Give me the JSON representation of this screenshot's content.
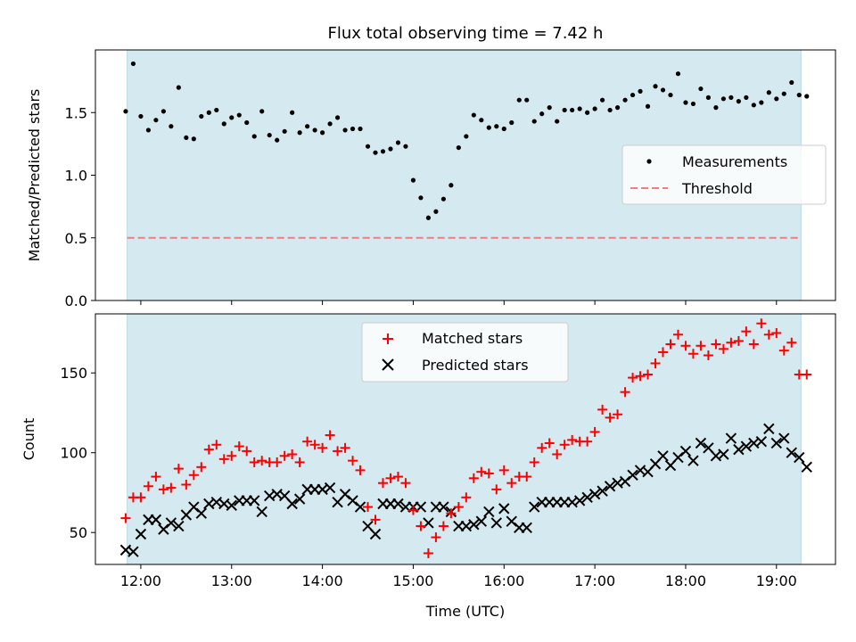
{
  "title": "Flux total observing time = 7.42 h",
  "xlabel": "Time (UTC)",
  "colors": {
    "span": "#d4eaf0",
    "threshold": "#f47c7c",
    "measurement": "#000000",
    "matched": "#ff0000",
    "predicted": "#000000"
  },
  "chart_data": [
    {
      "type": "scatter",
      "ylabel": "Matched/Predicted stars",
      "ylim": [
        0,
        2.0
      ],
      "yticks": [
        "0.0",
        "0.5",
        "1.0",
        "1.5"
      ],
      "xlim_hours": [
        11.5,
        19.65
      ],
      "span_hours": [
        11.85,
        19.27
      ],
      "legend": {
        "placement": "center-right",
        "entries": [
          "Measurements",
          "Threshold"
        ]
      },
      "threshold": 0.5,
      "series": [
        {
          "name": "Measurements",
          "marker": "dot",
          "x": [
            "11:50",
            "11:55",
            "12:00",
            "12:05",
            "12:10",
            "12:15",
            "12:20",
            "12:25",
            "12:30",
            "12:35",
            "12:40",
            "12:45",
            "12:50",
            "12:55",
            "13:00",
            "13:05",
            "13:10",
            "13:15",
            "13:20",
            "13:25",
            "13:30",
            "13:35",
            "13:40",
            "13:45",
            "13:50",
            "13:55",
            "14:00",
            "14:05",
            "14:10",
            "14:15",
            "14:20",
            "14:25",
            "14:30",
            "14:35",
            "14:40",
            "14:45",
            "14:50",
            "14:55",
            "15:00",
            "15:05",
            "15:10",
            "15:15",
            "15:20",
            "15:25",
            "15:30",
            "15:35",
            "15:40",
            "15:45",
            "15:50",
            "15:55",
            "16:00",
            "16:05",
            "16:10",
            "16:15",
            "16:20",
            "16:25",
            "16:30",
            "16:35",
            "16:40",
            "16:45",
            "16:50",
            "16:55",
            "17:00",
            "17:05",
            "17:10",
            "17:15",
            "17:20",
            "17:25",
            "17:30",
            "17:35",
            "17:40",
            "17:45",
            "17:50",
            "17:55",
            "18:00",
            "18:05",
            "18:10",
            "18:15",
            "18:20",
            "18:25",
            "18:30",
            "18:35",
            "18:40",
            "18:45",
            "18:50",
            "18:55",
            "19:00",
            "19:05",
            "19:10",
            "19:15",
            "19:20"
          ],
          "y": [
            1.51,
            1.89,
            1.47,
            1.36,
            1.44,
            1.51,
            1.39,
            1.7,
            1.3,
            1.29,
            1.47,
            1.5,
            1.52,
            1.41,
            1.46,
            1.48,
            1.42,
            1.31,
            1.51,
            1.32,
            1.28,
            1.35,
            1.5,
            1.34,
            1.39,
            1.36,
            1.34,
            1.41,
            1.46,
            1.36,
            1.37,
            1.37,
            1.23,
            1.18,
            1.19,
            1.21,
            1.26,
            1.23,
            0.96,
            0.82,
            0.66,
            0.71,
            0.81,
            0.92,
            1.22,
            1.31,
            1.48,
            1.44,
            1.38,
            1.39,
            1.37,
            1.42,
            1.6,
            1.6,
            1.43,
            1.49,
            1.54,
            1.43,
            1.52,
            1.52,
            1.53,
            1.5,
            1.53,
            1.6,
            1.52,
            1.54,
            1.6,
            1.64,
            1.67,
            1.55,
            1.71,
            1.68,
            1.64,
            1.81,
            1.58,
            1.57,
            1.69,
            1.62,
            1.54,
            1.61,
            1.62,
            1.59,
            1.62,
            1.56,
            1.58,
            1.66,
            1.61,
            1.65,
            1.74,
            1.64,
            1.63
          ]
        }
      ]
    },
    {
      "type": "scatter",
      "ylabel": "Count",
      "ylim": [
        30,
        187
      ],
      "yticks": [
        "50",
        "100",
        "150"
      ],
      "xticks": [
        "12:00",
        "13:00",
        "14:00",
        "15:00",
        "16:00",
        "17:00",
        "18:00",
        "19:00"
      ],
      "xlim_hours": [
        11.5,
        19.65
      ],
      "span_hours": [
        11.85,
        19.27
      ],
      "legend": {
        "placement": "upper-center",
        "entries": [
          "Matched stars",
          "Predicted stars"
        ]
      },
      "series": [
        {
          "name": "Matched stars",
          "marker": "plus",
          "x": [
            "11:50",
            "11:55",
            "12:00",
            "12:05",
            "12:10",
            "12:15",
            "12:20",
            "12:25",
            "12:30",
            "12:35",
            "12:40",
            "12:45",
            "12:50",
            "12:55",
            "13:00",
            "13:05",
            "13:10",
            "13:15",
            "13:20",
            "13:25",
            "13:30",
            "13:35",
            "13:40",
            "13:45",
            "13:50",
            "13:55",
            "14:00",
            "14:05",
            "14:10",
            "14:15",
            "14:20",
            "14:25",
            "14:30",
            "14:35",
            "14:40",
            "14:45",
            "14:50",
            "14:55",
            "15:00",
            "15:05",
            "15:10",
            "15:15",
            "15:20",
            "15:25",
            "15:30",
            "15:35",
            "15:40",
            "15:45",
            "15:50",
            "15:55",
            "16:00",
            "16:05",
            "16:10",
            "16:15",
            "16:20",
            "16:25",
            "16:30",
            "16:35",
            "16:40",
            "16:45",
            "16:50",
            "16:55",
            "17:00",
            "17:05",
            "17:10",
            "17:15",
            "17:20",
            "17:25",
            "17:30",
            "17:35",
            "17:40",
            "17:45",
            "17:50",
            "17:55",
            "18:00",
            "18:05",
            "18:10",
            "18:15",
            "18:20",
            "18:25",
            "18:30",
            "18:35",
            "18:40",
            "18:45",
            "18:50",
            "18:55",
            "19:00",
            "19:05",
            "19:10",
            "19:15",
            "19:20"
          ],
          "y": [
            59,
            72,
            72,
            79,
            85,
            77,
            78,
            90,
            80,
            86,
            91,
            102,
            105,
            96,
            98,
            104,
            101,
            94,
            95,
            94,
            94,
            98,
            99,
            94,
            107,
            105,
            103,
            111,
            101,
            103,
            95,
            89,
            66,
            58,
            81,
            84,
            85,
            81,
            64,
            54,
            37,
            47,
            54,
            62,
            66,
            72,
            84,
            88,
            87,
            77,
            89,
            81,
            85,
            85,
            94,
            103,
            106,
            99,
            105,
            108,
            107,
            107,
            113,
            127,
            122,
            124,
            138,
            147,
            148,
            149,
            156,
            163,
            168,
            174,
            167,
            162,
            167,
            161,
            168,
            165,
            169,
            170,
            176,
            168,
            181,
            174,
            175,
            164,
            169,
            149,
            149
          ]
        },
        {
          "name": "Predicted stars",
          "marker": "x",
          "x": [
            "11:50",
            "11:55",
            "12:00",
            "12:05",
            "12:10",
            "12:15",
            "12:20",
            "12:25",
            "12:30",
            "12:35",
            "12:40",
            "12:45",
            "12:50",
            "12:55",
            "13:00",
            "13:05",
            "13:10",
            "13:15",
            "13:20",
            "13:25",
            "13:30",
            "13:35",
            "13:40",
            "13:45",
            "13:50",
            "13:55",
            "14:00",
            "14:05",
            "14:10",
            "14:15",
            "14:20",
            "14:25",
            "14:30",
            "14:35",
            "14:40",
            "14:45",
            "14:50",
            "14:55",
            "15:00",
            "15:05",
            "15:10",
            "15:15",
            "15:20",
            "15:25",
            "15:30",
            "15:35",
            "15:40",
            "15:45",
            "15:50",
            "15:55",
            "16:00",
            "16:05",
            "16:10",
            "16:15",
            "16:20",
            "16:25",
            "16:30",
            "16:35",
            "16:40",
            "16:45",
            "16:50",
            "16:55",
            "17:00",
            "17:05",
            "17:10",
            "17:15",
            "17:20",
            "17:25",
            "17:30",
            "17:35",
            "17:40",
            "17:45",
            "17:50",
            "17:55",
            "18:00",
            "18:05",
            "18:10",
            "18:15",
            "18:20",
            "18:25",
            "18:30",
            "18:35",
            "18:40",
            "18:45",
            "18:50",
            "18:55",
            "19:00",
            "19:05",
            "19:10",
            "19:15",
            "19:20"
          ],
          "y": [
            39,
            38,
            49,
            58,
            58,
            52,
            56,
            54,
            61,
            66,
            62,
            68,
            69,
            68,
            67,
            70,
            70,
            70,
            63,
            73,
            74,
            73,
            68,
            71,
            77,
            77,
            77,
            78,
            69,
            74,
            70,
            66,
            54,
            49,
            68,
            68,
            68,
            66,
            66,
            66,
            56,
            66,
            66,
            63,
            54,
            54,
            55,
            57,
            63,
            56,
            65,
            57,
            53,
            53,
            66,
            69,
            69,
            69,
            69,
            69,
            70,
            72,
            74,
            76,
            79,
            81,
            82,
            86,
            89,
            88,
            93,
            98,
            92,
            97,
            101,
            95,
            106,
            103,
            98,
            99,
            109,
            102,
            104,
            106,
            107,
            115,
            106,
            109,
            100,
            97,
            91
          ]
        }
      ]
    }
  ]
}
